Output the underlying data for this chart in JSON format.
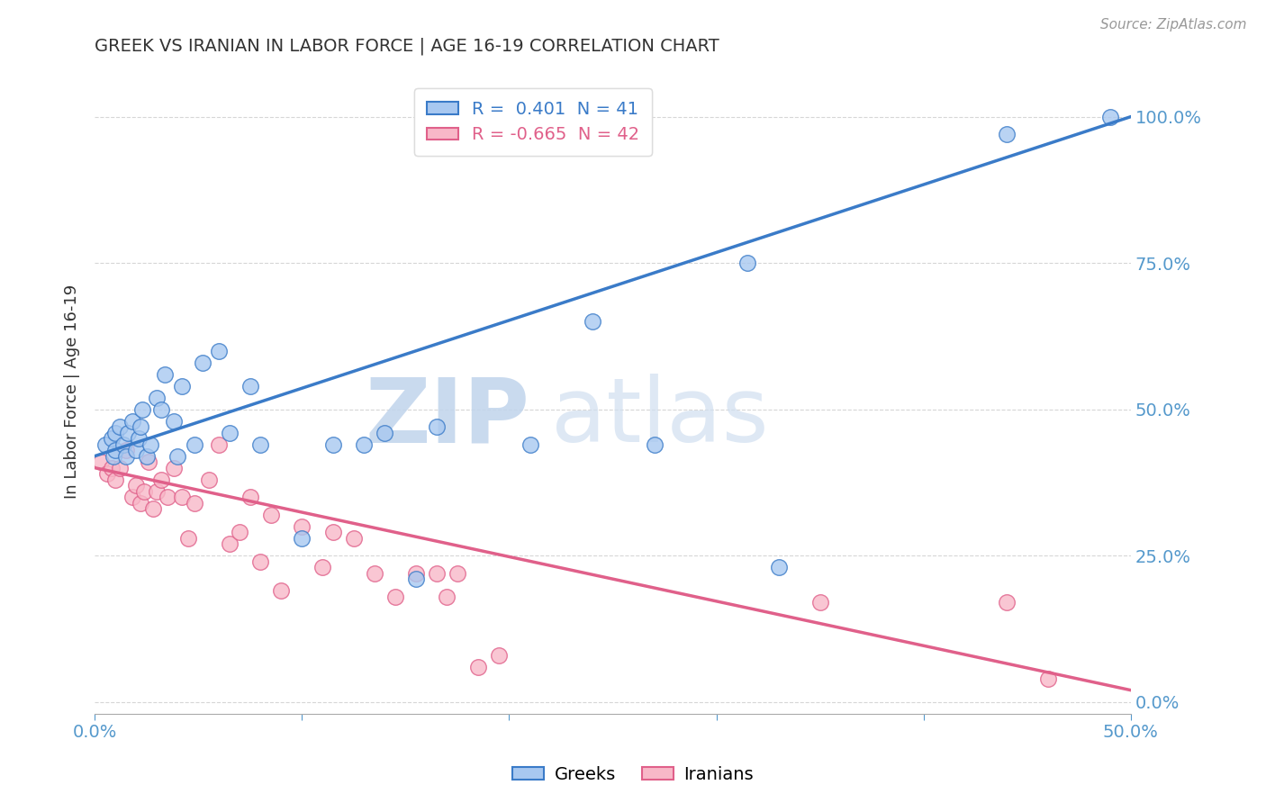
{
  "title": "GREEK VS IRANIAN IN LABOR FORCE | AGE 16-19 CORRELATION CHART",
  "source": "Source: ZipAtlas.com",
  "ylabel": "In Labor Force | Age 16-19",
  "ytick_labels": [
    "0.0%",
    "25.0%",
    "50.0%",
    "75.0%",
    "100.0%"
  ],
  "ytick_values": [
    0.0,
    0.25,
    0.5,
    0.75,
    1.0
  ],
  "xlim": [
    0.0,
    0.5
  ],
  "ylim": [
    -0.02,
    1.08
  ],
  "legend_greek_R": "0.401",
  "legend_greek_N": "41",
  "legend_iranian_R": "-0.665",
  "legend_iranian_N": "42",
  "watermark_zip": "ZIP",
  "watermark_atlas": "atlas",
  "greek_color": "#A8C8F0",
  "greek_line_color": "#3A7BC8",
  "iranian_color": "#F8B8C8",
  "iranian_line_color": "#E0608A",
  "greek_scatter_x": [
    0.005,
    0.008,
    0.009,
    0.01,
    0.01,
    0.012,
    0.014,
    0.015,
    0.016,
    0.018,
    0.02,
    0.021,
    0.022,
    0.023,
    0.025,
    0.027,
    0.03,
    0.032,
    0.034,
    0.038,
    0.04,
    0.042,
    0.048,
    0.052,
    0.06,
    0.065,
    0.075,
    0.08,
    0.1,
    0.115,
    0.13,
    0.14,
    0.155,
    0.165,
    0.21,
    0.24,
    0.27,
    0.315,
    0.33,
    0.44,
    0.49
  ],
  "greek_scatter_y": [
    0.44,
    0.45,
    0.42,
    0.43,
    0.46,
    0.47,
    0.44,
    0.42,
    0.46,
    0.48,
    0.43,
    0.45,
    0.47,
    0.5,
    0.42,
    0.44,
    0.52,
    0.5,
    0.56,
    0.48,
    0.42,
    0.54,
    0.44,
    0.58,
    0.6,
    0.46,
    0.54,
    0.44,
    0.28,
    0.44,
    0.44,
    0.46,
    0.21,
    0.47,
    0.44,
    0.65,
    0.44,
    0.75,
    0.23,
    0.97,
    1.0
  ],
  "iranian_scatter_x": [
    0.003,
    0.006,
    0.008,
    0.01,
    0.012,
    0.015,
    0.018,
    0.02,
    0.022,
    0.024,
    0.026,
    0.028,
    0.03,
    0.032,
    0.035,
    0.038,
    0.042,
    0.045,
    0.048,
    0.055,
    0.06,
    0.065,
    0.07,
    0.075,
    0.08,
    0.085,
    0.09,
    0.1,
    0.11,
    0.115,
    0.125,
    0.135,
    0.145,
    0.155,
    0.165,
    0.17,
    0.175,
    0.185,
    0.195,
    0.35,
    0.44,
    0.46
  ],
  "iranian_scatter_y": [
    0.41,
    0.39,
    0.4,
    0.38,
    0.4,
    0.43,
    0.35,
    0.37,
    0.34,
    0.36,
    0.41,
    0.33,
    0.36,
    0.38,
    0.35,
    0.4,
    0.35,
    0.28,
    0.34,
    0.38,
    0.44,
    0.27,
    0.29,
    0.35,
    0.24,
    0.32,
    0.19,
    0.3,
    0.23,
    0.29,
    0.28,
    0.22,
    0.18,
    0.22,
    0.22,
    0.18,
    0.22,
    0.06,
    0.08,
    0.17,
    0.17,
    0.04
  ],
  "greek_trend_x": [
    0.0,
    0.5
  ],
  "greek_trend_y": [
    0.42,
    1.0
  ],
  "iranian_trend_x": [
    0.0,
    0.5
  ],
  "iranian_trend_y": [
    0.4,
    0.02
  ],
  "background_color": "#FFFFFF",
  "grid_color": "#CCCCCC",
  "title_color": "#333333",
  "axis_label_color": "#5599CC",
  "source_color": "#999999"
}
